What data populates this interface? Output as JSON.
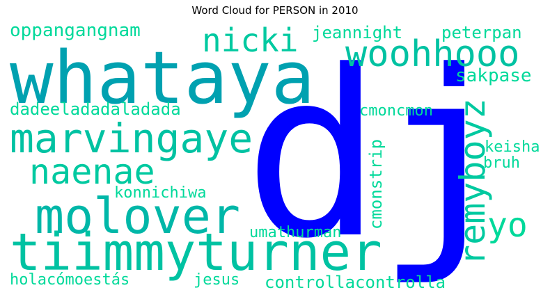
{
  "title": "Word Cloud for PERSON in 2010",
  "colors": {
    "blue": "#0000ff",
    "teal_dark": "#00a1b0",
    "teal": "#00c2a2",
    "green": "#00d99a"
  },
  "words": {
    "dj": "dj",
    "whataya": "whataya",
    "tiimmyturner": "tiimmyturner",
    "molover": "molover",
    "marvingaye": "marvingaye",
    "woohhooo": "woohhooo",
    "naenae": "naenae",
    "nicki": "nicki",
    "remyboyz": "remyboyz",
    "yo": "yo",
    "oppangangnam": "oppangangnam",
    "jeannight": "jeannight",
    "peterpan": "peterpan",
    "sakpase": "sakpase",
    "dadeeladadaladada": "dadeeladadaladada",
    "cmoncmon": "cmoncmon",
    "cmonstrip": "cmonstrip",
    "keisha": "keisha",
    "bruh": "bruh",
    "konnichiwa": "konnichiwa",
    "umathurman": "umathurman",
    "holacomoestas": "holacómoestás",
    "jesus": "jesus",
    "controllacontrolla": "controllacontrolla"
  }
}
